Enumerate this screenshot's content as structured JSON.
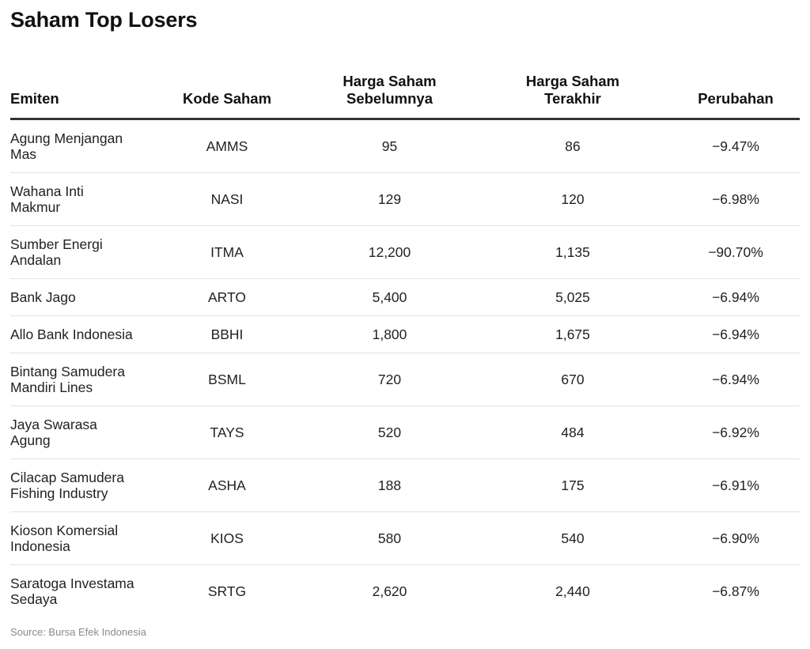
{
  "title": "Saham Top Losers",
  "source": "Source: Bursa Efek Indonesia",
  "chart_data": {
    "type": "table",
    "title": "Saham Top Losers",
    "columns": [
      {
        "label_lines": [
          "Emiten"
        ],
        "align": "left"
      },
      {
        "label_lines": [
          "Kode Saham"
        ],
        "align": "center"
      },
      {
        "label_lines": [
          "Harga Saham",
          "Sebelumnya"
        ],
        "align": "center"
      },
      {
        "label_lines": [
          "Harga Saham",
          "Terakhir"
        ],
        "align": "center"
      },
      {
        "label_lines": [
          "Perubahan"
        ],
        "align": "center"
      }
    ],
    "rows": [
      {
        "emiten_lines": [
          "Agung Menjangan",
          "Mas"
        ],
        "kode": "AMMS",
        "prev": "95",
        "last": "86",
        "change": "−9.47%"
      },
      {
        "emiten_lines": [
          "Wahana Inti",
          "Makmur"
        ],
        "kode": "NASI",
        "prev": "129",
        "last": "120",
        "change": "−6.98%"
      },
      {
        "emiten_lines": [
          "Sumber Energi",
          "Andalan"
        ],
        "kode": "ITMA",
        "prev": "12,200",
        "last": "1,135",
        "change": "−90.70%"
      },
      {
        "emiten_lines": [
          "Bank Jago"
        ],
        "kode": "ARTO",
        "prev": "5,400",
        "last": "5,025",
        "change": "−6.94%"
      },
      {
        "emiten_lines": [
          "Allo Bank Indonesia"
        ],
        "kode": "BBHI",
        "prev": "1,800",
        "last": "1,675",
        "change": "−6.94%"
      },
      {
        "emiten_lines": [
          "Bintang Samudera",
          "Mandiri Lines"
        ],
        "kode": "BSML",
        "prev": "720",
        "last": "670",
        "change": "−6.94%"
      },
      {
        "emiten_lines": [
          "Jaya Swarasa",
          "Agung"
        ],
        "kode": "TAYS",
        "prev": "520",
        "last": "484",
        "change": "−6.92%"
      },
      {
        "emiten_lines": [
          "Cilacap Samudera",
          "Fishing Industry"
        ],
        "kode": "ASHA",
        "prev": "188",
        "last": "175",
        "change": "−6.91%"
      },
      {
        "emiten_lines": [
          "Kioson Komersial",
          "Indonesia"
        ],
        "kode": "KIOS",
        "prev": "580",
        "last": "540",
        "change": "−6.90%"
      },
      {
        "emiten_lines": [
          "Saratoga Investama",
          "Sedaya"
        ],
        "kode": "SRTG",
        "prev": "2,620",
        "last": "2,440",
        "change": "−6.87%"
      }
    ]
  }
}
